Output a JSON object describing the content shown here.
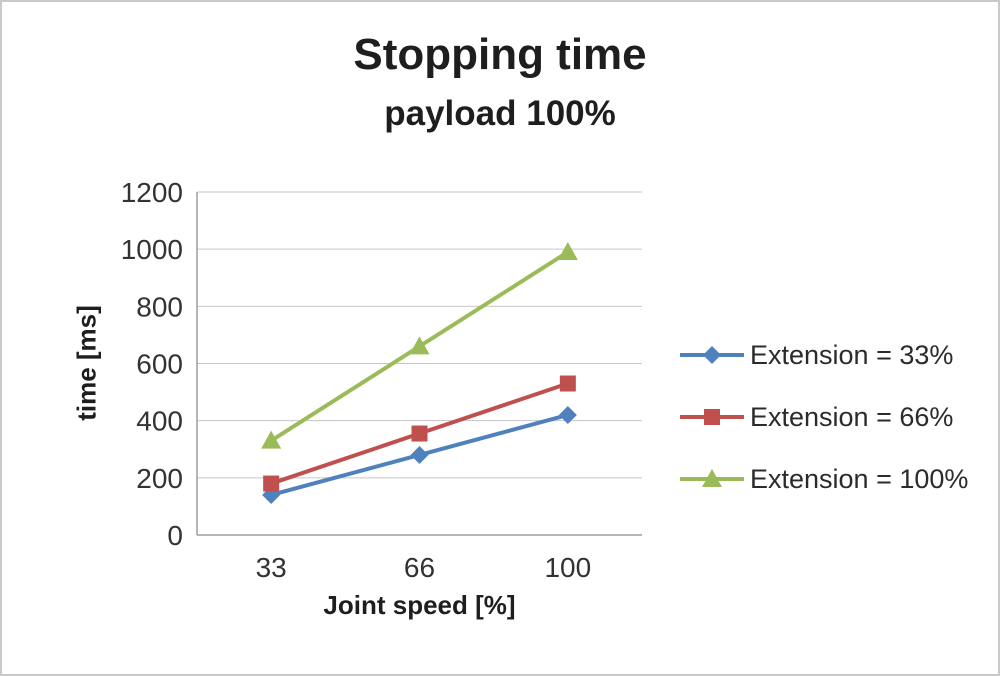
{
  "title": "Stopping time",
  "subtitle": "payload 100%",
  "chart_data": {
    "type": "line",
    "title": "Stopping time",
    "subtitle": "payload 100%",
    "xlabel": "Joint speed [%]",
    "ylabel": "time [ms]",
    "categories": [
      "33",
      "66",
      "100"
    ],
    "series": [
      {
        "name": "Extension = 33%",
        "values": [
          140,
          280,
          420
        ],
        "color": "#4F81BD",
        "marker": "diamond"
      },
      {
        "name": "Extension = 66%",
        "values": [
          180,
          355,
          530
        ],
        "color": "#C0504D",
        "marker": "square"
      },
      {
        "name": "Extension = 100%",
        "values": [
          330,
          660,
          990
        ],
        "color": "#9BBB59",
        "marker": "triangle"
      }
    ],
    "ylim": [
      0,
      1200
    ],
    "ytick_step": 200,
    "grid": true,
    "legend_position": "right",
    "colors": {
      "grid": "#c6c6c6",
      "axis": "#9e9e9e",
      "text": "#333333"
    }
  }
}
